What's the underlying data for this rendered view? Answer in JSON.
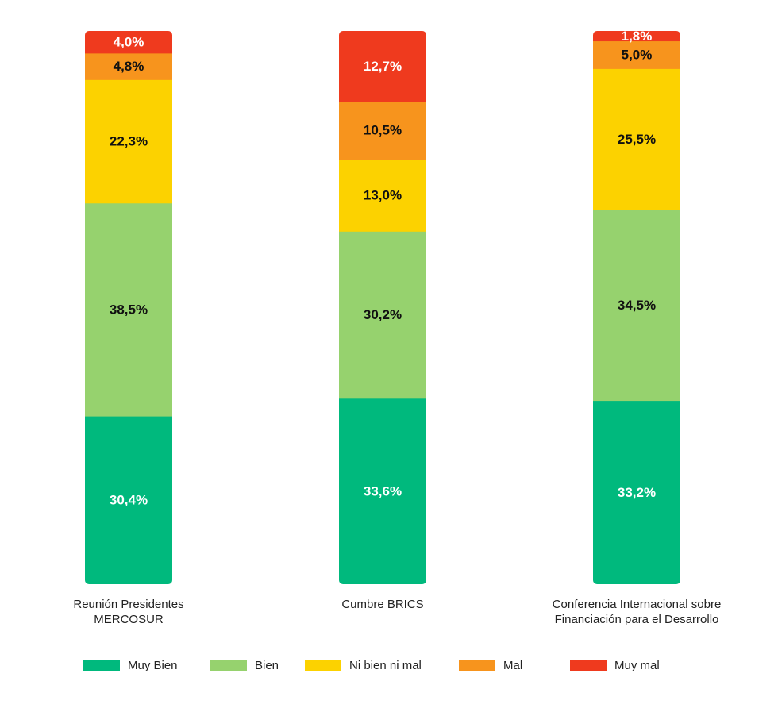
{
  "chart_data": {
    "type": "bar",
    "stacked": true,
    "unit": "%",
    "categories": [
      [
        "Reunión Presidentes",
        "MERCOSUR"
      ],
      [
        "Cumbre BRICS"
      ],
      [
        "Conferencia Internacional sobre",
        "Financiación para el Desarrollo"
      ]
    ],
    "series": [
      {
        "name": "Muy Bien",
        "color": "#00b97d",
        "values": [
          30.4,
          33.6,
          33.2
        ],
        "labels": [
          "30,4%",
          "33,6%",
          "33,2%"
        ],
        "label_color": "#ffffff"
      },
      {
        "name": "Bien",
        "color": "#96d26e",
        "values": [
          38.5,
          30.2,
          34.5
        ],
        "labels": [
          "38,5%",
          "30,2%",
          "34,5%"
        ],
        "label_color": "#111111"
      },
      {
        "name": "Ni bien ni mal",
        "color": "#fcd200",
        "values": [
          22.3,
          13.0,
          25.5
        ],
        "labels": [
          "22,3%",
          "13,0%",
          "25,5%"
        ],
        "label_color": "#111111"
      },
      {
        "name": "Mal",
        "color": "#f7941d",
        "values": [
          4.8,
          10.5,
          5.0
        ],
        "labels": [
          "4,8%",
          "10,5%",
          "5,0%"
        ],
        "label_color": "#111111"
      },
      {
        "name": "Muy mal",
        "color": "#ef3a1e",
        "values": [
          4.0,
          12.7,
          1.8
        ],
        "labels": [
          "4,0%",
          "12,7%",
          "1,8%"
        ],
        "label_color": "#ffffff"
      }
    ],
    "legend_position": "bottom",
    "grid": false,
    "title": "",
    "xlabel": "",
    "ylabel": ""
  }
}
